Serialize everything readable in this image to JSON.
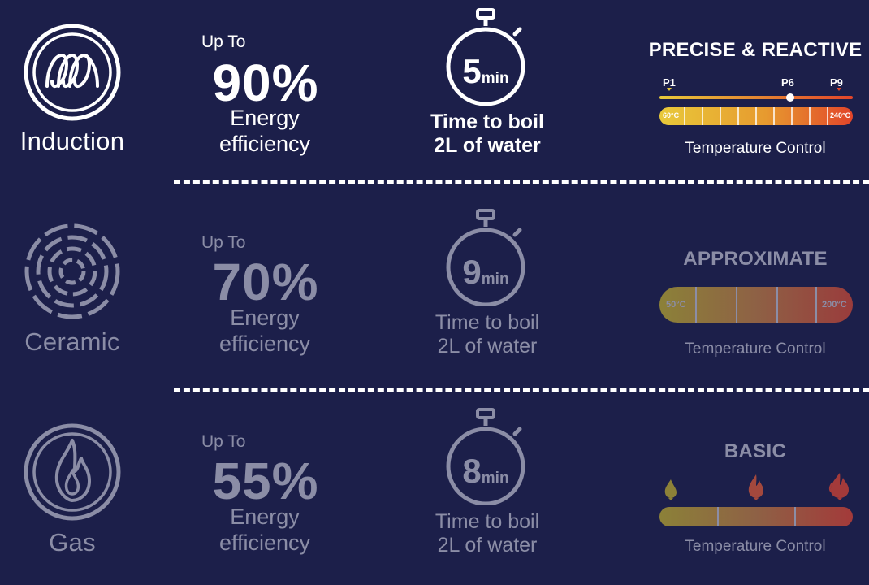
{
  "rows": [
    {
      "type": "Induction",
      "up_to": "Up To",
      "efficiency_pct": "90%",
      "efficiency_line1": "Energy",
      "efficiency_line2": "efficiency",
      "boil_minutes": "5",
      "boil_unit": "min",
      "boil_line1": "Time to boil",
      "boil_line2": "2L of water",
      "control_title": "PRECISE & REACTIVE",
      "control_sub": "Temperature Control",
      "markers": [
        "P1",
        "P6",
        "P9"
      ],
      "temp_min": "60°C",
      "temp_max": "240°C",
      "icon": "induction-coil-icon"
    },
    {
      "type": "Ceramic",
      "up_to": "Up To",
      "efficiency_pct": "70%",
      "efficiency_line1": "Energy",
      "efficiency_line2": "efficiency",
      "boil_minutes": "9",
      "boil_unit": "min",
      "boil_line1": "Time to boil",
      "boil_line2": "2L of water",
      "control_title": "APPROXIMATE",
      "control_sub": "Temperature Control",
      "temp_min": "50°C",
      "temp_max": "200°C",
      "icon": "ceramic-rings-icon"
    },
    {
      "type": "Gas",
      "up_to": "Up To",
      "efficiency_pct": "55%",
      "efficiency_line1": "Energy",
      "efficiency_line2": "efficiency",
      "boil_minutes": "8",
      "boil_unit": "min",
      "boil_line1": "Time to boil",
      "boil_line2": "2L of water",
      "control_title": "BASIC",
      "control_sub": "Temperature Control",
      "icon": "gas-flame-icon"
    }
  ],
  "colors": {
    "background": "#1c1f4a",
    "bright_text": "#ffffff",
    "dim_text": "#8b8da6"
  }
}
